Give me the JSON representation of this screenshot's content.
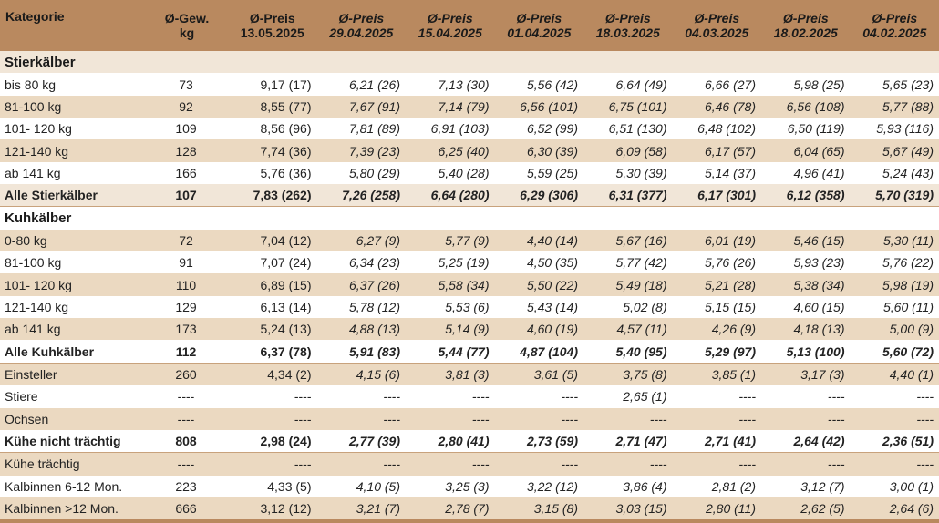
{
  "header": {
    "kategorie": "Kategorie",
    "gew_line1": "Ø-Gew.",
    "gew_line2": "kg",
    "preis_label": "Ø-Preis",
    "dates": [
      "13.05.2025",
      "29.04.2025",
      "15.04.2025",
      "01.04.2025",
      "18.03.2025",
      "04.03.2025",
      "18.02.2025",
      "04.02.2025"
    ]
  },
  "sections": {
    "stier": "Stierkälber",
    "kuh": "Kuhkälber"
  },
  "rows": [
    {
      "k": "bis 80 kg",
      "g": "73",
      "v": [
        "9,17 (17)",
        "6,21 (26)",
        "7,13 (30)",
        "5,56 (42)",
        "6,64 (49)",
        "6,66 (27)",
        "5,98 (25)",
        "5,65 (23)"
      ]
    },
    {
      "k": "81-100 kg",
      "g": "92",
      "v": [
        "8,55 (77)",
        "7,67 (91)",
        "7,14 (79)",
        "6,56 (101)",
        "6,75 (101)",
        "6,46 (78)",
        "6,56 (108)",
        "5,77 (88)"
      ]
    },
    {
      "k": "101- 120 kg",
      "g": "109",
      "v": [
        "8,56 (96)",
        "7,81 (89)",
        "6,91 (103)",
        "6,52 (99)",
        "6,51 (130)",
        "6,48 (102)",
        "6,50 (119)",
        "5,93 (116)"
      ]
    },
    {
      "k": "121-140 kg",
      "g": "128",
      "v": [
        "7,74 (36)",
        "7,39 (23)",
        "6,25 (40)",
        "6,30 (39)",
        "6,09 (58)",
        "6,17 (57)",
        "6,04 (65)",
        "5,67 (49)"
      ]
    },
    {
      "k": "ab 141 kg",
      "g": "166",
      "v": [
        "5,76 (36)",
        "5,80 (29)",
        "5,40 (28)",
        "5,59 (25)",
        "5,30 (39)",
        "5,14 (37)",
        "4,96 (41)",
        "5,24 (43)"
      ]
    },
    {
      "k": "Alle Stierkälber",
      "g": "107",
      "v": [
        "7,83 (262)",
        "7,26 (258)",
        "6,64 (280)",
        "6,29 (306)",
        "6,31 (377)",
        "6,17 (301)",
        "6,12 (358)",
        "5,70 (319)"
      ]
    },
    {
      "k": "0-80 kg",
      "g": "72",
      "v": [
        "7,04 (12)",
        "6,27 (9)",
        "5,77 (9)",
        "4,40 (14)",
        "5,67 (16)",
        "6,01 (19)",
        "5,46 (15)",
        "5,30 (11)"
      ]
    },
    {
      "k": "81-100 kg",
      "g": "91",
      "v": [
        "7,07 (24)",
        "6,34 (23)",
        "5,25 (19)",
        "4,50 (35)",
        "5,77 (42)",
        "5,76 (26)",
        "5,93 (23)",
        "5,76 (22)"
      ]
    },
    {
      "k": "101- 120 kg",
      "g": "110",
      "v": [
        "6,89 (15)",
        "6,37 (26)",
        "5,58 (34)",
        "5,50 (22)",
        "5,49 (18)",
        "5,21 (28)",
        "5,38 (34)",
        "5,98 (19)"
      ]
    },
    {
      "k": "121-140 kg",
      "g": "129",
      "v": [
        "6,13 (14)",
        "5,78 (12)",
        "5,53 (6)",
        "5,43 (14)",
        "5,02 (8)",
        "5,15 (15)",
        "4,60 (15)",
        "5,60 (11)"
      ]
    },
    {
      "k": "ab 141 kg",
      "g": "173",
      "v": [
        "5,24 (13)",
        "4,88 (13)",
        "5,14 (9)",
        "4,60 (19)",
        "4,57 (11)",
        "4,26 (9)",
        "4,18 (13)",
        "5,00 (9)"
      ]
    },
    {
      "k": "Alle Kuhkälber",
      "g": "112",
      "v": [
        "6,37 (78)",
        "5,91 (83)",
        "5,44 (77)",
        "4,87 (104)",
        "5,40 (95)",
        "5,29 (97)",
        "5,13 (100)",
        "5,60 (72)"
      ]
    },
    {
      "k": "Einsteller",
      "g": "260",
      "v": [
        "4,34 (2)",
        "4,15 (6)",
        "3,81 (3)",
        "3,61 (5)",
        "3,75 (8)",
        "3,85 (1)",
        "3,17 (3)",
        "4,40 (1)"
      ]
    },
    {
      "k": "Stiere",
      "g": "----",
      "v": [
        "----",
        "----",
        "----",
        "----",
        "2,65 (1)",
        "----",
        "----",
        "----"
      ]
    },
    {
      "k": "Ochsen",
      "g": "----",
      "v": [
        "----",
        "----",
        "----",
        "----",
        "----",
        "----",
        "----",
        "----"
      ]
    },
    {
      "k": "Kühe nicht trächtig",
      "g": "808",
      "v": [
        "2,98 (24)",
        "2,77 (39)",
        "2,80 (41)",
        "2,73 (59)",
        "2,71 (47)",
        "2,71 (41)",
        "2,64 (42)",
        "2,36 (51)"
      ]
    },
    {
      "k": "Kühe trächtig",
      "g": "----",
      "v": [
        "----",
        "----",
        "----",
        "----",
        "----",
        "----",
        "----",
        "----"
      ]
    },
    {
      "k": "Kalbinnen 6-12 Mon.",
      "g": "223",
      "v": [
        "4,33 (5)",
        "4,10 (5)",
        "3,25 (3)",
        "3,22 (12)",
        "3,86 (4)",
        "2,81 (2)",
        "3,12 (7)",
        "3,00 (1)"
      ]
    },
    {
      "k": "Kalbinnen >12 Mon.",
      "g": "666",
      "v": [
        "3,12 (12)",
        "3,21 (7)",
        "2,78 (7)",
        "3,15 (8)",
        "3,03 (15)",
        "2,80 (11)",
        "2,62 (5)",
        "2,64 (6)"
      ]
    }
  ]
}
